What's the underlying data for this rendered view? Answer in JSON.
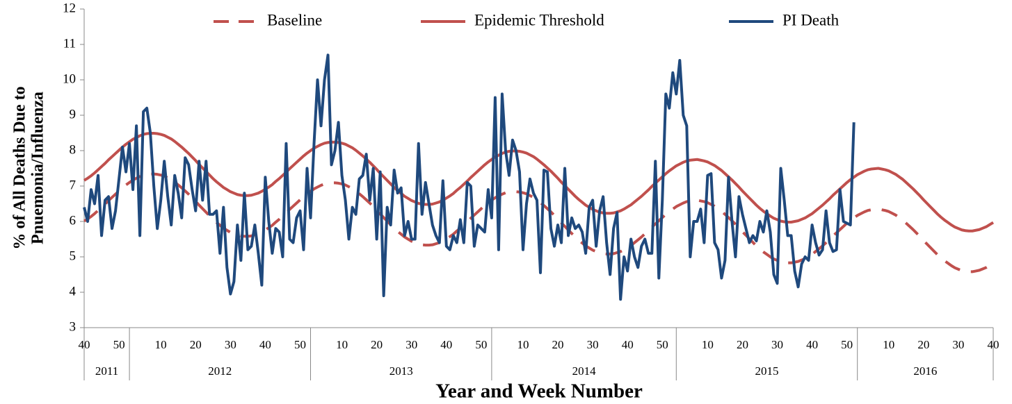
{
  "chart_data": {
    "type": "line",
    "ylabel": [
      "% of All Deaths Due to",
      "Pnuemonia/Influenza"
    ],
    "xlabel": "Year and Week Number",
    "ylim": [
      3,
      12
    ],
    "yticks": [
      3,
      4,
      5,
      6,
      7,
      8,
      9,
      10,
      11,
      12
    ],
    "legend": "top",
    "grid": false,
    "categories": [
      "40",
      null,
      null,
      null,
      null,
      null,
      null,
      null,
      null,
      null,
      "50",
      null,
      null,
      null,
      null,
      null,
      null,
      null,
      null,
      null,
      null,
      null,
      "10",
      null,
      null,
      null,
      null,
      null,
      null,
      null,
      null,
      null,
      "20",
      null,
      null,
      null,
      null,
      null,
      null,
      null,
      null,
      null,
      "30",
      null,
      null,
      null,
      null,
      null,
      null,
      null,
      null,
      null,
      "40",
      null,
      null,
      null,
      null,
      null,
      null,
      null,
      null,
      null,
      "50",
      null,
      null,
      null,
      null,
      null,
      null,
      null,
      null,
      null,
      null,
      null,
      "10",
      null,
      null,
      null,
      null,
      null,
      null,
      null,
      null,
      null,
      "20",
      null,
      null,
      null,
      null,
      null,
      null,
      null,
      null,
      null,
      "30",
      null,
      null,
      null,
      null,
      null,
      null,
      null,
      null,
      null,
      "40",
      null,
      null,
      null,
      null,
      null,
      null,
      null,
      null,
      null,
      "50",
      null,
      null,
      null,
      null,
      null,
      null,
      null,
      null,
      null,
      null,
      null,
      "10",
      null,
      null,
      null,
      null,
      null,
      null,
      null,
      null,
      null,
      "20",
      null,
      null,
      null,
      null,
      null,
      null,
      null,
      null,
      null,
      "30",
      null,
      null,
      null,
      null,
      null,
      null,
      null,
      null,
      null,
      "40",
      null,
      null,
      null,
      null,
      null,
      null,
      null,
      null,
      null,
      "50",
      null,
      null,
      null,
      null,
      null,
      null,
      null,
      null,
      null,
      null,
      null,
      null,
      "10",
      null,
      null,
      null,
      null,
      null,
      null,
      null,
      null,
      null,
      "20",
      null,
      null,
      null,
      null,
      null,
      null,
      null,
      null,
      null,
      "30",
      null,
      null,
      null,
      null,
      null,
      null,
      null,
      null,
      null,
      "40",
      null,
      null,
      null,
      null,
      null,
      null,
      null,
      null,
      null,
      "50",
      null,
      null,
      null,
      null,
      null,
      null,
      null,
      null,
      null,
      null,
      null,
      "10",
      null,
      null,
      null,
      null,
      null,
      null,
      null,
      null,
      null,
      "20",
      null,
      null,
      null,
      null,
      null,
      null,
      null,
      null,
      null,
      "30",
      null,
      null,
      null,
      null,
      null,
      null,
      null,
      null,
      null,
      "40"
    ],
    "groups": [
      {
        "label": "2011",
        "span": 13
      },
      {
        "label": "2012",
        "span": 52
      },
      {
        "label": "2013",
        "span": 52
      },
      {
        "label": "2014",
        "span": 53
      },
      {
        "label": "2015",
        "span": 52
      },
      {
        "label": "2016",
        "span": 40
      }
    ],
    "series": [
      {
        "name": "Baseline",
        "color": "#c0504d",
        "style": "dashed",
        "values": [
          6.01,
          6.07,
          6.14,
          6.22,
          6.31,
          6.4,
          6.49,
          6.59,
          6.68,
          6.77,
          6.86,
          6.95,
          7.03,
          7.1,
          7.17,
          7.22,
          7.27,
          7.31,
          7.33,
          7.34,
          7.34,
          7.33,
          7.31,
          7.28,
          7.23,
          7.18,
          7.11,
          7.03,
          6.95,
          6.86,
          6.77,
          6.67,
          6.57,
          6.46,
          6.36,
          6.26,
          6.16,
          6.06,
          5.97,
          5.89,
          5.81,
          5.75,
          5.69,
          5.65,
          5.61,
          5.59,
          5.58,
          5.58,
          5.59,
          5.62,
          5.65,
          5.7,
          5.76,
          5.82,
          5.89,
          5.98,
          6.06,
          6.15,
          6.24,
          6.34,
          6.43,
          6.52,
          6.61,
          6.7,
          6.78,
          6.85,
          6.92,
          6.97,
          7.02,
          7.06,
          7.08,
          7.09,
          7.09,
          7.08,
          7.06,
          7.03,
          6.98,
          6.93,
          6.86,
          6.78,
          6.7,
          6.61,
          6.52,
          6.42,
          6.32,
          6.21,
          6.11,
          6.01,
          5.91,
          5.81,
          5.72,
          5.64,
          5.56,
          5.5,
          5.44,
          5.4,
          5.36,
          5.34,
          5.33,
          5.33,
          5.34,
          5.37,
          5.4,
          5.45,
          5.51,
          5.57,
          5.64,
          5.73,
          5.81,
          5.9,
          5.99,
          6.09,
          6.18,
          6.27,
          6.36,
          6.45,
          6.53,
          6.6,
          6.67,
          6.72,
          6.77,
          6.81,
          6.83,
          6.84,
          6.84,
          6.83,
          6.81,
          6.78,
          6.73,
          6.68,
          6.61,
          6.53,
          6.45,
          6.36,
          6.27,
          6.17,
          6.07,
          5.96,
          5.86,
          5.76,
          5.66,
          5.56,
          5.47,
          5.39,
          5.31,
          5.25,
          5.19,
          5.15,
          5.11,
          5.09,
          5.08,
          5.08,
          5.09,
          5.12,
          5.15,
          5.2,
          5.26,
          5.32,
          5.4,
          5.48,
          5.56,
          5.65,
          5.74,
          5.84,
          5.93,
          6.02,
          6.11,
          6.2,
          6.28,
          6.35,
          6.42,
          6.47,
          6.52,
          6.56,
          6.58,
          6.59,
          6.6,
          6.58,
          6.56,
          6.53,
          6.48,
          6.43,
          6.36,
          6.29,
          6.2,
          6.11,
          6.02,
          5.92,
          5.82,
          5.71,
          5.61,
          5.51,
          5.41,
          5.31,
          5.22,
          5.14,
          5.07,
          5.0,
          4.94,
          4.9,
          4.86,
          4.84,
          4.83,
          4.83,
          4.85,
          4.87,
          4.91,
          4.95,
          5.01,
          5.07,
          5.15,
          5.23,
          5.31,
          5.4,
          5.49,
          5.59,
          5.68,
          5.77,
          5.86,
          5.95,
          6.03,
          6.1,
          6.17,
          6.22,
          6.27,
          6.31,
          6.33,
          6.34,
          6.35,
          6.33,
          6.31,
          6.28,
          6.23,
          6.18,
          6.11,
          6.04,
          5.95,
          5.86,
          5.77,
          5.67,
          5.57,
          5.46,
          5.36,
          5.26,
          5.16,
          5.06,
          4.97,
          4.89,
          4.82,
          4.75,
          4.69,
          4.65,
          4.61,
          4.59,
          4.58,
          4.58,
          4.6,
          4.62,
          4.66,
          4.7,
          4.76,
          4.82
        ]
      },
      {
        "name": "Epidemic Threshold",
        "color": "#c0504d",
        "style": "solid",
        "values": [
          7.16,
          7.22,
          7.29,
          7.37,
          7.46,
          7.55,
          7.64,
          7.74,
          7.83,
          7.92,
          8.01,
          8.1,
          8.18,
          8.25,
          8.32,
          8.37,
          8.42,
          8.46,
          8.48,
          8.49,
          8.49,
          8.48,
          8.46,
          8.43,
          8.38,
          8.33,
          8.26,
          8.18,
          8.1,
          8.01,
          7.92,
          7.82,
          7.72,
          7.61,
          7.51,
          7.41,
          7.31,
          7.21,
          7.12,
          7.04,
          6.96,
          6.9,
          6.84,
          6.8,
          6.76,
          6.74,
          6.73,
          6.73,
          6.74,
          6.77,
          6.8,
          6.85,
          6.91,
          6.97,
          7.04,
          7.13,
          7.21,
          7.3,
          7.39,
          7.49,
          7.58,
          7.67,
          7.76,
          7.85,
          7.93,
          8.0,
          8.07,
          8.12,
          8.17,
          8.21,
          8.23,
          8.24,
          8.24,
          8.23,
          8.21,
          8.18,
          8.13,
          8.08,
          8.01,
          7.93,
          7.85,
          7.76,
          7.67,
          7.57,
          7.47,
          7.36,
          7.26,
          7.16,
          7.06,
          6.96,
          6.87,
          6.79,
          6.71,
          6.65,
          6.59,
          6.55,
          6.51,
          6.49,
          6.48,
          6.48,
          6.49,
          6.52,
          6.55,
          6.6,
          6.66,
          6.72,
          6.79,
          6.88,
          6.96,
          7.05,
          7.14,
          7.24,
          7.33,
          7.42,
          7.51,
          7.6,
          7.68,
          7.75,
          7.82,
          7.87,
          7.92,
          7.96,
          7.98,
          7.99,
          7.99,
          7.98,
          7.96,
          7.93,
          7.88,
          7.83,
          7.76,
          7.68,
          7.6,
          7.51,
          7.42,
          7.32,
          7.22,
          7.11,
          7.01,
          6.91,
          6.81,
          6.71,
          6.62,
          6.54,
          6.46,
          6.4,
          6.34,
          6.3,
          6.26,
          6.24,
          6.23,
          6.23,
          6.24,
          6.27,
          6.3,
          6.35,
          6.41,
          6.47,
          6.55,
          6.63,
          6.71,
          6.8,
          6.89,
          6.99,
          7.08,
          7.17,
          7.26,
          7.35,
          7.43,
          7.5,
          7.57,
          7.62,
          7.67,
          7.71,
          7.73,
          7.74,
          7.75,
          7.73,
          7.71,
          7.68,
          7.63,
          7.58,
          7.51,
          7.44,
          7.35,
          7.26,
          7.17,
          7.07,
          6.97,
          6.86,
          6.76,
          6.66,
          6.56,
          6.46,
          6.37,
          6.29,
          6.22,
          6.15,
          6.09,
          6.05,
          6.01,
          5.99,
          5.98,
          5.98,
          6.0,
          6.02,
          6.06,
          6.1,
          6.16,
          6.22,
          6.3,
          6.38,
          6.46,
          6.55,
          6.64,
          6.74,
          6.83,
          6.92,
          7.01,
          7.1,
          7.18,
          7.25,
          7.32,
          7.37,
          7.42,
          7.46,
          7.48,
          7.49,
          7.5,
          7.48,
          7.46,
          7.43,
          7.38,
          7.33,
          7.26,
          7.19,
          7.1,
          7.01,
          6.92,
          6.82,
          6.72,
          6.61,
          6.51,
          6.41,
          6.31,
          6.21,
          6.12,
          6.04,
          5.97,
          5.9,
          5.84,
          5.8,
          5.76,
          5.74,
          5.73,
          5.73,
          5.75,
          5.77,
          5.81,
          5.85,
          5.91,
          5.97
        ]
      },
      {
        "name": "PI Death",
        "color": "#1f497d",
        "style": "solid",
        "values": [
          6.4,
          6.0,
          6.9,
          6.5,
          7.3,
          5.6,
          6.6,
          6.7,
          5.8,
          6.3,
          7.2,
          8.1,
          7.4,
          8.2,
          6.9,
          8.7,
          5.6,
          9.1,
          9.2,
          8.5,
          7.0,
          5.8,
          6.6,
          7.7,
          6.7,
          5.9,
          7.3,
          6.8,
          6.1,
          7.8,
          7.6,
          6.9,
          6.3,
          7.7,
          6.6,
          7.7,
          6.2,
          6.2,
          6.3,
          5.1,
          6.4,
          4.7,
          3.95,
          4.3,
          5.9,
          4.9,
          6.8,
          5.2,
          5.3,
          5.9,
          5.1,
          4.2,
          7.25,
          6.0,
          5.1,
          5.8,
          5.7,
          5.0,
          8.2,
          5.5,
          5.4,
          6.1,
          6.3,
          5.2,
          7.5,
          6.1,
          8.2,
          10.0,
          8.7,
          10.0,
          10.7,
          7.6,
          8.0,
          8.8,
          7.3,
          6.6,
          5.5,
          6.4,
          6.2,
          7.2,
          7.3,
          7.9,
          6.6,
          7.5,
          5.5,
          7.4,
          3.9,
          6.4,
          5.9,
          7.45,
          6.8,
          6.95,
          5.6,
          6.0,
          5.5,
          5.5,
          8.2,
          6.2,
          7.1,
          6.5,
          5.9,
          5.6,
          5.4,
          7.15,
          5.3,
          5.2,
          5.6,
          5.4,
          6.05,
          5.4,
          7.1,
          7.0,
          5.3,
          5.9,
          5.8,
          5.7,
          6.9,
          6.1,
          9.5,
          5.2,
          9.6,
          8.0,
          7.3,
          8.3,
          8.0,
          7.4,
          5.2,
          6.5,
          7.2,
          6.8,
          6.6,
          4.55,
          7.45,
          7.4,
          5.8,
          5.3,
          5.9,
          5.4,
          7.5,
          5.6,
          6.1,
          5.8,
          5.9,
          5.7,
          5.1,
          6.4,
          6.6,
          5.3,
          6.3,
          6.7,
          5.4,
          4.5,
          5.8,
          6.25,
          3.8,
          5.0,
          4.6,
          5.5,
          5.0,
          4.7,
          5.3,
          5.5,
          5.1,
          5.1,
          7.7,
          4.4,
          6.6,
          9.6,
          9.2,
          10.2,
          9.6,
          10.55,
          9.0,
          8.7,
          5.0,
          6.0,
          6.0,
          6.35,
          5.4,
          7.3,
          7.35,
          5.4,
          5.2,
          4.4,
          4.9,
          7.25,
          6.0,
          5.0,
          6.7,
          6.2,
          5.8,
          5.4,
          5.6,
          5.45,
          6.0,
          5.7,
          6.3,
          5.7,
          4.5,
          4.25,
          7.5,
          6.6,
          5.6,
          5.6,
          4.6,
          4.15,
          4.8,
          5.0,
          4.9,
          5.9,
          5.4,
          5.05,
          5.2,
          6.3,
          5.4,
          5.15,
          5.2,
          6.9,
          6.0,
          5.95,
          5.9,
          8.8,
          null,
          null,
          null,
          null,
          null,
          null,
          null,
          null,
          null,
          null,
          null,
          null,
          null,
          null,
          null,
          null,
          null,
          null,
          null,
          null,
          null,
          null,
          null,
          null,
          null,
          null,
          null,
          null,
          null,
          null,
          null,
          null,
          null,
          null,
          null,
          null,
          null,
          null,
          null,
          null
        ]
      }
    ]
  }
}
